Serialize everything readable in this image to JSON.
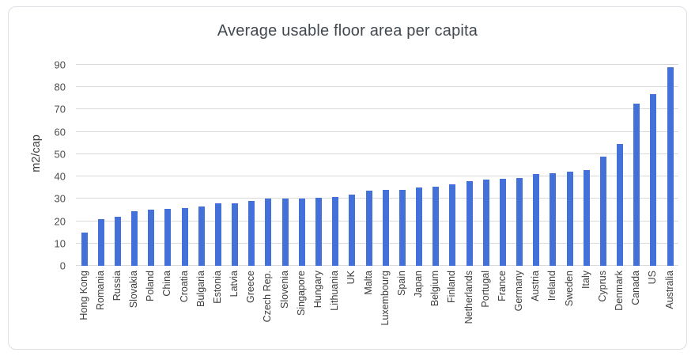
{
  "chart_data": {
    "type": "bar",
    "title": "Average usable floor area per capita",
    "xlabel": "",
    "ylabel": "m2/cap",
    "ylim": [
      0,
      90
    ],
    "grid": true,
    "legend": "none",
    "bar_color": "#4470da",
    "gridline_color": "#d9d9d9",
    "categories": [
      "Hong Kong",
      "Romania",
      "Russia",
      "Slovakia",
      "Poland",
      "China",
      "Croatia",
      "Bulgaria",
      "Estonia",
      "Latvia",
      "Greece",
      "Czech Rep.",
      "Slovenia",
      "Singapore",
      "Hungary",
      "Lithuania",
      "UK",
      "Malta",
      "Luxembourg",
      "Spain",
      "Japan",
      "Belgium",
      "Finland",
      "Netherlands",
      "Portugal",
      "France",
      "Germany",
      "Austria",
      "Ireland",
      "Sweden",
      "Italy",
      "Cyprus",
      "Denmark",
      "Canada",
      "US",
      "Australia"
    ],
    "values": [
      15,
      21,
      22,
      24.5,
      25,
      25.5,
      26,
      26.5,
      28,
      28,
      29,
      30,
      30,
      30,
      30.5,
      31,
      32,
      33.5,
      34,
      34,
      35,
      35.5,
      36.5,
      38,
      38.5,
      39,
      39.5,
      41,
      41.5,
      42,
      43,
      49,
      54.5,
      72.5,
      77,
      89
    ]
  },
  "y_axis": {
    "label": "m2/cap",
    "ticks": [
      0,
      10,
      20,
      30,
      40,
      50,
      60,
      70,
      80,
      90
    ]
  }
}
